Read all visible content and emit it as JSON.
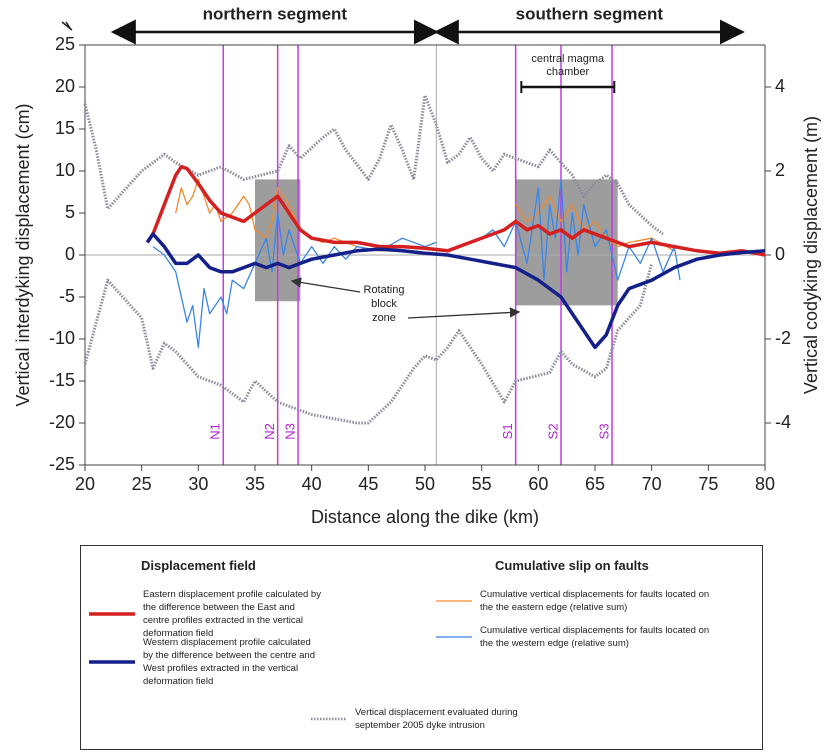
{
  "chart_data": {
    "type": "line",
    "xlabel": "Distance along the dike (km)",
    "ylabel": "Vertical interdyking displacement (cm)",
    "y2label": "Vertical codyking displacement (m)",
    "xlim": [
      20,
      80
    ],
    "xticks": [
      20,
      25,
      30,
      35,
      40,
      45,
      50,
      55,
      60,
      65,
      70,
      75,
      80
    ],
    "ylim": [
      -25,
      25
    ],
    "yticks": [
      25,
      20,
      15,
      10,
      5,
      0,
      -5,
      -10,
      -15,
      -20,
      -25
    ],
    "y2lim": [
      -5,
      5
    ],
    "y2ticks": [
      4,
      2,
      0,
      -2,
      -4
    ],
    "legend_headers": [
      "Displacement field",
      "Cumulative slip on faults"
    ],
    "series": [
      {
        "name": "Eastern displacement profile calculated by the difference between the East and centre profiles extracted in the vertical deformation field",
        "color": "#d42020",
        "x": [
          25.5,
          26,
          27,
          28,
          28.5,
          29,
          30,
          31,
          32,
          33,
          34,
          35,
          36,
          37,
          38,
          39,
          40,
          42,
          44,
          46,
          48,
          50,
          52,
          54,
          56,
          57,
          58,
          59,
          60,
          61,
          62,
          63,
          64,
          65,
          66,
          67,
          68,
          70,
          72,
          74,
          76,
          78,
          80
        ],
        "values": [
          1.5,
          2.5,
          6,
          9.5,
          10.5,
          10.3,
          8.5,
          6.5,
          5,
          4.5,
          4,
          5,
          6,
          7,
          5,
          3,
          2,
          1.5,
          1.5,
          1,
          1,
          0.8,
          0.5,
          1.5,
          2.5,
          3,
          4,
          3,
          3.5,
          2.5,
          3,
          2,
          3,
          2.5,
          2,
          1.5,
          1,
          1.5,
          1,
          0.5,
          0.2,
          0.5,
          0
        ]
      },
      {
        "name": "Western displacement profile calculated by the difference between the centre and West profiles extracted in the vertical deformation field",
        "color": "#14208a",
        "x": [
          25.5,
          26,
          27,
          28,
          29,
          30,
          31,
          32,
          33,
          34,
          35,
          36,
          37,
          38,
          39,
          40,
          42,
          44,
          46,
          48,
          50,
          52,
          54,
          56,
          58,
          60,
          62,
          64,
          65,
          66,
          67,
          68,
          70,
          72,
          74,
          76,
          78,
          80
        ],
        "values": [
          1.5,
          2.5,
          1,
          -1,
          -1,
          0,
          -1.5,
          -2,
          -2,
          -1.5,
          -1,
          -1.5,
          -1,
          -1.5,
          -1,
          -0.5,
          0,
          0.5,
          0.7,
          0.5,
          0.2,
          0,
          -0.5,
          -1,
          -1.5,
          -3,
          -5,
          -9,
          -11,
          -9.5,
          -6,
          -4,
          -3,
          -1.5,
          -0.5,
          0,
          0.3,
          0.5
        ]
      },
      {
        "name": "Cumulative vertical displacements for faults located on the the eastern edge (relative sum)",
        "color": "#f08a30",
        "x": [
          28,
          28.5,
          29,
          29.5,
          30,
          30.5,
          31,
          31.5,
          32,
          33,
          34,
          34.5,
          35,
          36,
          36.5,
          37,
          38,
          39,
          40,
          41,
          42,
          44,
          46,
          48,
          null,
          58,
          59,
          60,
          61,
          62,
          63,
          64,
          65,
          66,
          67,
          68,
          70,
          72
        ],
        "values": [
          5,
          8,
          6,
          7,
          9,
          7,
          5,
          6,
          4,
          5,
          7,
          6,
          3,
          2,
          4,
          8,
          6,
          3,
          2,
          1.5,
          2,
          1,
          0.5,
          0.5,
          null,
          6,
          4,
          5,
          7,
          4,
          6,
          3,
          4,
          2,
          1,
          1.5,
          2,
          0.5
        ]
      },
      {
        "name": "Cumulative vertical displacements for faults located on the the western edge (relative sum)",
        "color": "#3a86e8",
        "x": [
          26,
          27,
          28,
          29,
          29.5,
          30,
          30.5,
          31,
          32,
          32.5,
          33,
          34,
          35,
          36,
          36.5,
          37,
          37.5,
          38,
          39,
          40,
          41,
          42,
          43,
          44,
          46,
          48,
          50,
          51,
          null,
          55,
          56,
          57,
          58,
          59,
          60,
          60.5,
          61,
          61.5,
          62,
          62.5,
          63,
          63.5,
          64,
          65,
          66,
          67,
          68,
          69,
          70,
          71,
          72,
          72.5
        ],
        "values": [
          1,
          0,
          -2,
          -8,
          -6,
          -11,
          -4,
          -7,
          -5,
          -7,
          -3,
          -4,
          -1,
          2,
          -2,
          5,
          0,
          3,
          -1,
          1,
          -1,
          1,
          -0.5,
          1,
          0.5,
          2,
          1,
          1.5,
          null,
          2,
          3,
          1,
          4,
          -1,
          8,
          -3,
          6,
          2,
          9,
          -2,
          5,
          0,
          6,
          1,
          3,
          -3,
          1,
          -1,
          2,
          -2,
          1,
          -3
        ]
      },
      {
        "name": "Vertical displacement evaluated during september 2005 dyke intrusion",
        "color": "#8a8a9a",
        "axis": "y2",
        "x": [
          20,
          21,
          22,
          25,
          27,
          28,
          30,
          32,
          34,
          37,
          38,
          39,
          41,
          42,
          43,
          45,
          46,
          47,
          48,
          49,
          50,
          51,
          52,
          53,
          54,
          55,
          56,
          57,
          59,
          60,
          61,
          63,
          64,
          65,
          66,
          67,
          68,
          70,
          71,
          null,
          20,
          22,
          25,
          26,
          27,
          28,
          30,
          32,
          34,
          35,
          37,
          40,
          44,
          45,
          47,
          49,
          50,
          51,
          52,
          53,
          55,
          57,
          58,
          61,
          62,
          63,
          65,
          66,
          67,
          69,
          70
        ],
        "values": [
          3.6,
          2.5,
          1.1,
          2,
          2.4,
          2.2,
          1.9,
          2.1,
          1.8,
          2,
          2.6,
          2.3,
          2.8,
          3,
          2.5,
          1.8,
          2.3,
          3.1,
          2.5,
          1.8,
          3.8,
          3.1,
          2.2,
          2.4,
          2.8,
          2.3,
          2,
          2.4,
          2.2,
          2.1,
          2.5,
          1.9,
          1.4,
          1.7,
          1.9,
          1.7,
          1.2,
          0.7,
          0.5,
          null,
          -2.6,
          -0.6,
          -1.5,
          -2.7,
          -2.1,
          -2.3,
          -2.9,
          -3.1,
          -3.5,
          -3,
          -3.5,
          -3.8,
          -4,
          -4,
          -3.5,
          -2.7,
          -2.4,
          -2.5,
          -2.2,
          -1.8,
          -2.6,
          -3.5,
          -3,
          -2.8,
          -2.3,
          -2.6,
          -2.9,
          -2.7,
          -1.8,
          -1.2,
          -0.2
        ]
      }
    ],
    "segments": [
      {
        "label": "northern segment",
        "x": [
          22.5,
          51
        ]
      },
      {
        "label": "southern segment",
        "x": [
          51,
          78
        ]
      }
    ],
    "faults": [
      {
        "label": "N1",
        "x": 32.2
      },
      {
        "label": "N2",
        "x": 37
      },
      {
        "label": "N3",
        "x": 38.8
      },
      {
        "label": "S1",
        "x": 58
      },
      {
        "label": "S2",
        "x": 62
      },
      {
        "label": "S3",
        "x": 66.5
      }
    ],
    "zones": [
      {
        "x": [
          35,
          39
        ],
        "y": [
          -5.5,
          9
        ]
      },
      {
        "x": [
          58,
          67
        ],
        "y": [
          -6,
          9
        ]
      }
    ],
    "zone_label": [
      "Rotating",
      "block",
      "zone"
    ],
    "chamber": {
      "label": [
        "central magma",
        "chamber"
      ],
      "x": [
        58.5,
        66.7
      ],
      "y": 20
    }
  }
}
